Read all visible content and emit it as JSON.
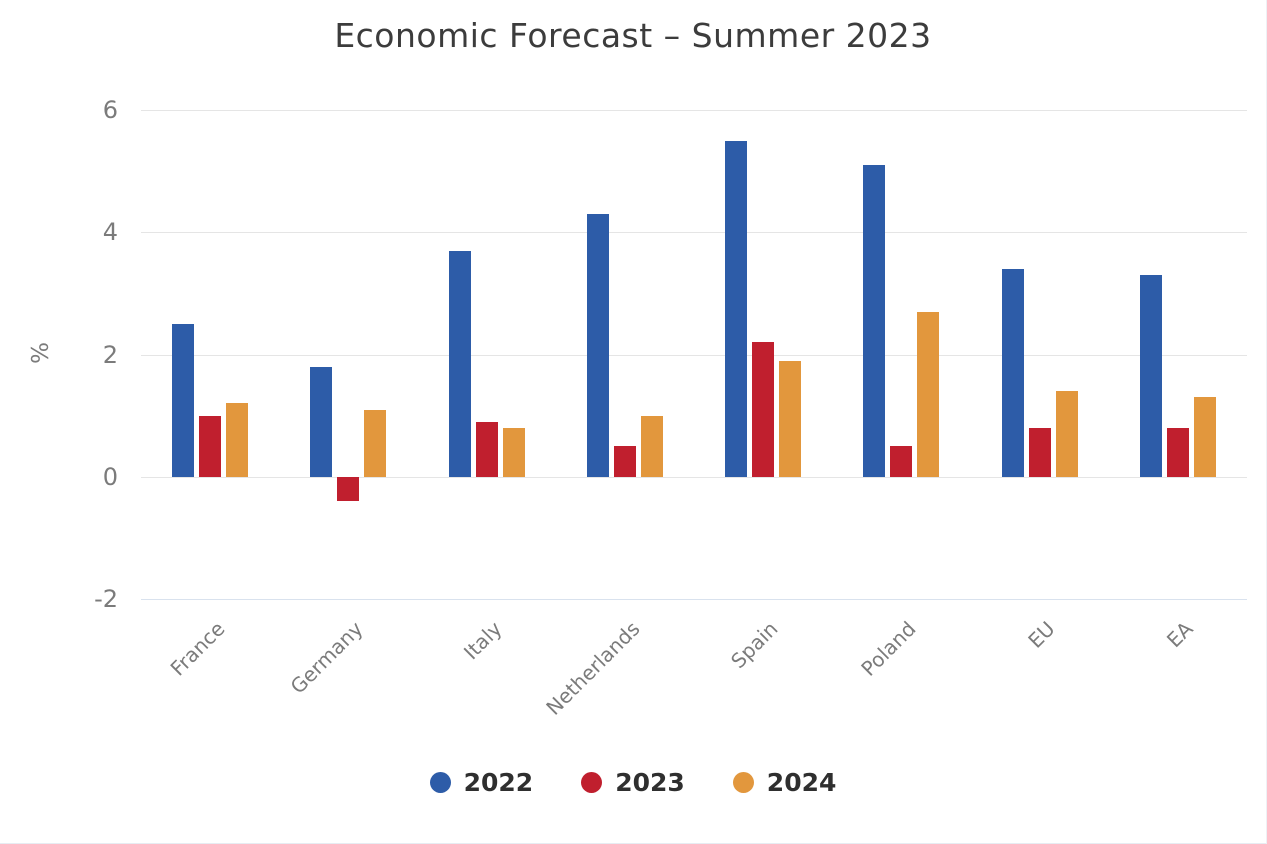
{
  "title": "Economic Forecast – Summer 2023",
  "y_axis": {
    "label": "%",
    "ticks": [
      "6",
      "4",
      "2",
      "0",
      "-2"
    ]
  },
  "colors": {
    "series_2022": "#2d5ca8",
    "series_2023": "#c01f2e",
    "series_2024": "#e2973d",
    "gridline": "#e5e5e5",
    "baseline": "#d9e2ee",
    "axis_text": "#7b7b7b",
    "title_text": "#3c3c3c",
    "legend_text": "#2f2f2f"
  },
  "chart_data": {
    "type": "bar",
    "title": "Economic Forecast – Summer 2023",
    "categories": [
      "France",
      "Germany",
      "Italy",
      "Netherlands",
      "Spain",
      "Poland",
      "EU",
      "EA"
    ],
    "series": [
      {
        "name": "2022",
        "color": "#2d5ca8",
        "values": [
          2.5,
          1.8,
          3.7,
          4.3,
          5.5,
          5.1,
          3.4,
          3.3
        ]
      },
      {
        "name": "2023",
        "color": "#c01f2e",
        "values": [
          1.0,
          -0.4,
          0.9,
          0.5,
          2.2,
          0.5,
          0.8,
          0.8
        ]
      },
      {
        "name": "2024",
        "color": "#e2973d",
        "values": [
          1.2,
          1.1,
          0.8,
          1.0,
          1.9,
          2.7,
          1.4,
          1.3
        ]
      }
    ],
    "xlabel": "",
    "ylabel": "%",
    "ylim": [
      -2,
      6
    ],
    "yticks": [
      6,
      4,
      2,
      0,
      -2
    ],
    "grid": true,
    "legend_position": "bottom",
    "bar_orientation": "vertical"
  }
}
